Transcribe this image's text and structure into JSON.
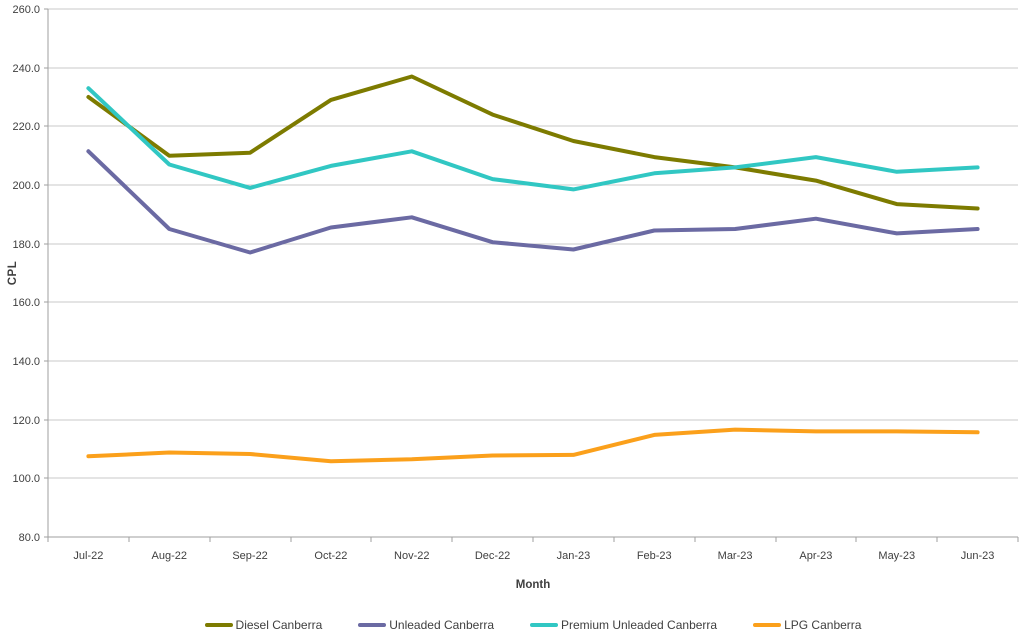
{
  "colors": {
    "background": "#ffffff",
    "gridline": "#c9c9c9",
    "axis": "#9f9f9f",
    "text": "#3f3f3f"
  },
  "chart_data": {
    "type": "line",
    "title": "",
    "xlabel": "Month",
    "ylabel": "CPL",
    "ylim": [
      80,
      260
    ],
    "ystep": 20,
    "ytick_labels": [
      "80.0",
      "100.0",
      "120.0",
      "140.0",
      "160.0",
      "180.0",
      "200.0",
      "220.0",
      "240.0",
      "260.0"
    ],
    "grid": "horizontal",
    "legend_position": "bottom",
    "categories": [
      "Jul-22",
      "Aug-22",
      "Sep-22",
      "Oct-22",
      "Nov-22",
      "Dec-22",
      "Jan-23",
      "Feb-23",
      "Mar-23",
      "Apr-23",
      "May-23",
      "Jun-23"
    ],
    "series": [
      {
        "name": "Diesel Canberra",
        "color": "#7d7b00",
        "values": [
          230.0,
          210.0,
          211.0,
          229.0,
          237.0,
          224.0,
          215.0,
          209.5,
          206.0,
          201.5,
          193.5,
          192.0
        ]
      },
      {
        "name": "Unleaded Canberra",
        "color": "#6b6aa3",
        "values": [
          211.5,
          185.0,
          177.0,
          185.5,
          189.0,
          180.5,
          178.0,
          184.5,
          185.0,
          188.5,
          183.5,
          185.0
        ]
      },
      {
        "name": "Premium Unleaded Canberra",
        "color": "#31c7c3",
        "values": [
          233.0,
          207.0,
          199.0,
          206.5,
          211.5,
          202.0,
          198.5,
          204.0,
          206.0,
          209.5,
          204.5,
          206.0
        ]
      },
      {
        "name": "LPG Canberra",
        "color": "#fba01b",
        "values": [
          107.5,
          108.8,
          108.3,
          105.8,
          106.5,
          107.8,
          108.0,
          114.8,
          116.6,
          116.0,
          116.0,
          115.7
        ]
      }
    ]
  }
}
